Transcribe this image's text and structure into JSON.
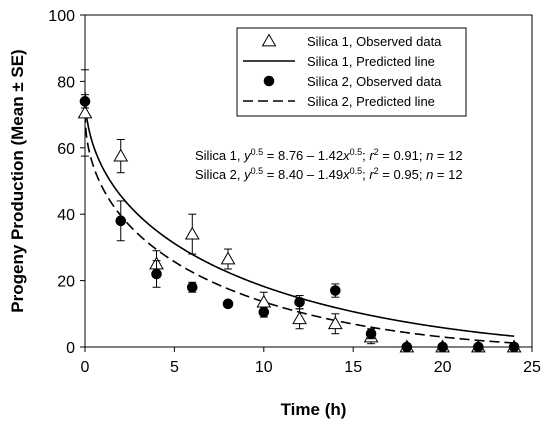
{
  "chart_data": {
    "type": "scatter",
    "xlabel": "Time (h)",
    "ylabel": "Progeny Production (Mean ± SE)",
    "xlim": [
      0,
      25
    ],
    "ylim": [
      0,
      100
    ],
    "xticks": [
      0,
      5,
      10,
      15,
      20,
      25
    ],
    "yticks": [
      0,
      20,
      40,
      60,
      80,
      100
    ],
    "grid": false,
    "legend_position": "top-right",
    "series": [
      {
        "name": "Silica 1, Observed data",
        "kind": "points",
        "marker": "open-triangle",
        "points": [
          {
            "x": 0,
            "y": 70.5,
            "se": 13
          },
          {
            "x": 2,
            "y": 57.5,
            "se": 5
          },
          {
            "x": 4,
            "y": 25,
            "se": 4
          },
          {
            "x": 6,
            "y": 34,
            "se": 6
          },
          {
            "x": 8,
            "y": 26.5,
            "se": 3
          },
          {
            "x": 10,
            "y": 13.5,
            "se": 3
          },
          {
            "x": 12,
            "y": 8.5,
            "se": 3
          },
          {
            "x": 14,
            "y": 7,
            "se": 3
          },
          {
            "x": 16,
            "y": 3,
            "se": 2
          },
          {
            "x": 18,
            "y": 0,
            "se": 0.5
          },
          {
            "x": 20,
            "y": 0,
            "se": 0.5
          },
          {
            "x": 22,
            "y": 0,
            "se": 0.5
          },
          {
            "x": 24,
            "y": 0,
            "se": 0.5
          }
        ]
      },
      {
        "name": "Silica 1, Predicted line",
        "kind": "line",
        "style": "solid",
        "a": 8.76,
        "b": 1.42
      },
      {
        "name": "Silica 2, Observed data",
        "kind": "points",
        "marker": "filled-circle",
        "points": [
          {
            "x": 0,
            "y": 74,
            "se": 2
          },
          {
            "x": 2,
            "y": 38,
            "se": 6
          },
          {
            "x": 4,
            "y": 22,
            "se": 4
          },
          {
            "x": 6,
            "y": 18,
            "se": 1.5
          },
          {
            "x": 8,
            "y": 13,
            "se": 1
          },
          {
            "x": 10,
            "y": 10.5,
            "se": 1.5
          },
          {
            "x": 12,
            "y": 13.5,
            "se": 2
          },
          {
            "x": 14,
            "y": 17,
            "se": 2
          },
          {
            "x": 16,
            "y": 4,
            "se": 1.5
          },
          {
            "x": 18,
            "y": 0,
            "se": 0.5
          },
          {
            "x": 20,
            "y": 0,
            "se": 0.5
          },
          {
            "x": 22,
            "y": 0,
            "se": 0.5
          },
          {
            "x": 24,
            "y": 0,
            "se": 0.5
          }
        ]
      },
      {
        "name": "Silica 2, Predicted line",
        "kind": "line",
        "style": "dashed",
        "a": 8.4,
        "b": 1.49
      }
    ],
    "annotations": [
      {
        "label": "Silica 1, ",
        "a": "8.76",
        "b": "1.42",
        "r2": "0.91",
        "n": "12"
      },
      {
        "label": "Silica 2, ",
        "a": "8.40",
        "b": "1.49",
        "r2": "0.95",
        "n": "12"
      }
    ]
  }
}
